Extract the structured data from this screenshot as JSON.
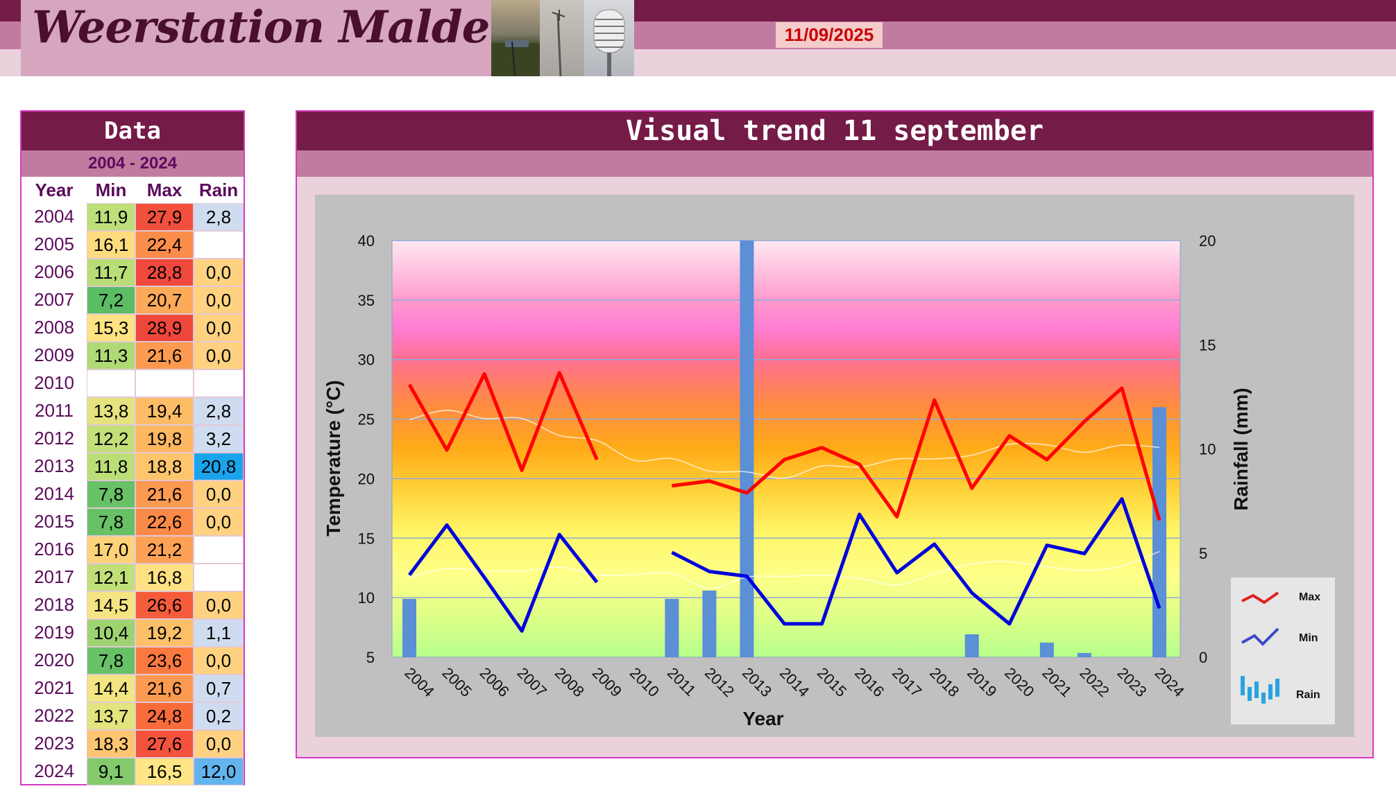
{
  "header": {
    "title": "Weerstation Malderen",
    "date": "11/09/2025"
  },
  "colors": {
    "dark": "#741b47",
    "mid": "#c27ba0",
    "light": "#ead1dc",
    "max_line": "#ff0000",
    "min_line": "#0000dd",
    "rain_bar": "#5b8fd6"
  },
  "table": {
    "title": "Data",
    "range": "2004 - 2024",
    "headers": [
      "Year",
      "Min",
      "Max",
      "Rain"
    ],
    "rows": [
      {
        "year": "2004",
        "min": "11,9",
        "max": "27,9",
        "rain": "2,8"
      },
      {
        "year": "2005",
        "min": "16,1",
        "max": "22,4",
        "rain": ""
      },
      {
        "year": "2006",
        "min": "11,7",
        "max": "28,8",
        "rain": "0,0"
      },
      {
        "year": "2007",
        "min": "7,2",
        "max": "20,7",
        "rain": "0,0"
      },
      {
        "year": "2008",
        "min": "15,3",
        "max": "28,9",
        "rain": "0,0"
      },
      {
        "year": "2009",
        "min": "11,3",
        "max": "21,6",
        "rain": "0,0"
      },
      {
        "year": "2010",
        "min": "",
        "max": "",
        "rain": ""
      },
      {
        "year": "2011",
        "min": "13,8",
        "max": "19,4",
        "rain": "2,8"
      },
      {
        "year": "2012",
        "min": "12,2",
        "max": "19,8",
        "rain": "3,2"
      },
      {
        "year": "2013",
        "min": "11,8",
        "max": "18,8",
        "rain": "20,8"
      },
      {
        "year": "2014",
        "min": "7,8",
        "max": "21,6",
        "rain": "0,0"
      },
      {
        "year": "2015",
        "min": "7,8",
        "max": "22,6",
        "rain": "0,0"
      },
      {
        "year": "2016",
        "min": "17,0",
        "max": "21,2",
        "rain": ""
      },
      {
        "year": "2017",
        "min": "12,1",
        "max": "16,8",
        "rain": ""
      },
      {
        "year": "2018",
        "min": "14,5",
        "max": "26,6",
        "rain": "0,0"
      },
      {
        "year": "2019",
        "min": "10,4",
        "max": "19,2",
        "rain": "1,1"
      },
      {
        "year": "2020",
        "min": "7,8",
        "max": "23,6",
        "rain": "0,0"
      },
      {
        "year": "2021",
        "min": "14,4",
        "max": "21,6",
        "rain": "0,7"
      },
      {
        "year": "2022",
        "min": "13,7",
        "max": "24,8",
        "rain": "0,2"
      },
      {
        "year": "2023",
        "min": "18,3",
        "max": "27,6",
        "rain": "0,0"
      },
      {
        "year": "2024",
        "min": "9,1",
        "max": "16,5",
        "rain": "12,0"
      }
    ]
  },
  "chart_data": {
    "type": "line",
    "title": "Visual trend 11 september",
    "xlabel": "Year",
    "ylabel": "Temperature (°C)",
    "y2label": "Rainfall (mm)",
    "categories": [
      "2004",
      "2005",
      "2006",
      "2007",
      "2008",
      "2009",
      "2010",
      "2011",
      "2012",
      "2013",
      "2014",
      "2015",
      "2016",
      "2017",
      "2018",
      "2019",
      "2020",
      "2021",
      "2022",
      "2023",
      "2024"
    ],
    "ylim": [
      5,
      40
    ],
    "y2lim": [
      0,
      20
    ],
    "yticks": [
      5,
      10,
      15,
      20,
      25,
      30,
      35,
      40
    ],
    "y2ticks": [
      0,
      5,
      10,
      15,
      20
    ],
    "grid": true,
    "legend_position": "right",
    "series": [
      {
        "name": "Max",
        "type": "line",
        "axis": "left",
        "values": [
          27.9,
          22.4,
          28.8,
          20.7,
          28.9,
          21.6,
          null,
          19.4,
          19.8,
          18.8,
          21.6,
          22.6,
          21.2,
          16.8,
          26.6,
          19.2,
          23.6,
          21.6,
          24.8,
          27.6,
          16.5
        ]
      },
      {
        "name": "Min",
        "type": "line",
        "axis": "left",
        "values": [
          11.9,
          16.1,
          11.7,
          7.2,
          15.3,
          11.3,
          null,
          13.8,
          12.2,
          11.8,
          7.8,
          7.8,
          17.0,
          12.1,
          14.5,
          10.4,
          7.8,
          14.4,
          13.7,
          18.3,
          9.1
        ]
      },
      {
        "name": "Rain",
        "type": "bar",
        "axis": "right",
        "values": [
          2.8,
          null,
          0.0,
          0.0,
          0.0,
          0.0,
          null,
          2.8,
          3.2,
          20.8,
          0.0,
          0.0,
          null,
          null,
          0.0,
          1.1,
          0.0,
          0.7,
          0.2,
          0.0,
          12.0
        ]
      }
    ]
  }
}
